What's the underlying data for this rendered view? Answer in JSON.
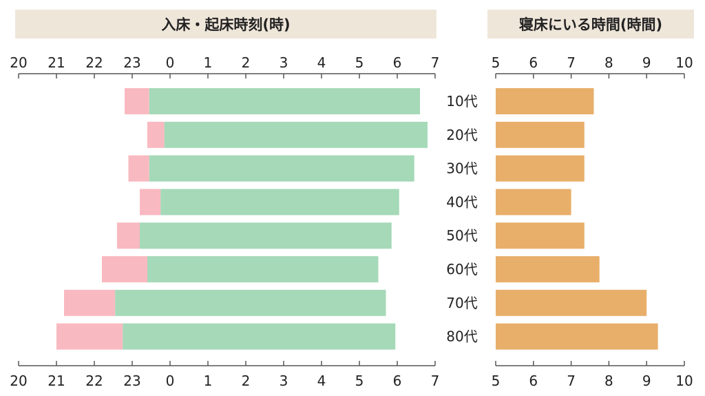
{
  "chart_data": [
    {
      "type": "bar",
      "subtype": "floating-range",
      "title": "入床・起床時刻(時)",
      "categories": [
        "10代",
        "20代",
        "30代",
        "40代",
        "50代",
        "60代",
        "70代",
        "80代"
      ],
      "x_ticks": [
        "20",
        "21",
        "22",
        "23",
        "0",
        "1",
        "2",
        "3",
        "4",
        "5",
        "6",
        "7"
      ],
      "series": [
        {
          "role": "lie-down-to-sleep-onset",
          "color": "#f9b9c0",
          "start": [
            22.8,
            23.4,
            22.9,
            23.2,
            22.6,
            22.2,
            21.2,
            21.0
          ],
          "end": [
            23.45,
            23.85,
            23.45,
            23.75,
            23.2,
            23.4,
            22.55,
            22.75
          ]
        },
        {
          "role": "sleep-onset-to-rise",
          "color": "#a5d9b8",
          "start": [
            23.45,
            23.85,
            23.45,
            23.75,
            23.2,
            23.4,
            22.55,
            22.75
          ],
          "end": [
            30.6,
            30.8,
            30.45,
            30.05,
            29.85,
            29.5,
            29.7,
            29.95
          ]
        }
      ],
      "xlim": [
        20,
        31
      ],
      "grid": false
    },
    {
      "type": "bar",
      "orientation": "horizontal",
      "title": "寝床にいる時間(時間)",
      "categories": [
        "10代",
        "20代",
        "30代",
        "40代",
        "50代",
        "60代",
        "70代",
        "80代"
      ],
      "values": [
        7.6,
        7.35,
        7.35,
        7.0,
        7.35,
        7.75,
        9.0,
        9.3
      ],
      "color": "#e8af6a",
      "x_ticks": [
        "5",
        "6",
        "7",
        "8",
        "9",
        "10"
      ],
      "xlim": [
        5,
        10
      ],
      "grid": false
    }
  ],
  "colors": {
    "header_bg": "#efe6da",
    "axis": "#555555"
  }
}
